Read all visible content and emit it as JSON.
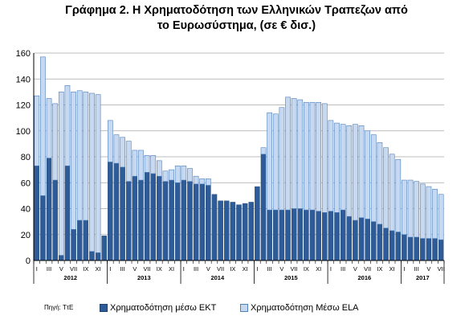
{
  "chart_data": {
    "type": "bar",
    "stacked": true,
    "title": [
      "Γράφημα 2. Η Χρηματοδότηση των Ελληνικών Τραπεζων από",
      "το Ευρωσύστημα, (σε € δισ.)"
    ],
    "ylim": [
      0,
      160
    ],
    "yticks": [
      0,
      20,
      40,
      60,
      80,
      100,
      120,
      140,
      160
    ],
    "grid": true,
    "legend_position": "bottom",
    "source": "Πηγή: ΤτΕ",
    "month_labels": [
      "I",
      "III",
      "V",
      "VII",
      "IX",
      "XI"
    ],
    "month_labels_last": "VII",
    "years": [
      "2012",
      "2013",
      "2014",
      "2015",
      "2016",
      "2017"
    ],
    "x": [
      "2012-01",
      "2012-02",
      "2012-03",
      "2012-04",
      "2012-05",
      "2012-06",
      "2012-07",
      "2012-08",
      "2012-09",
      "2012-10",
      "2012-11",
      "2012-12",
      "2013-01",
      "2013-02",
      "2013-03",
      "2013-04",
      "2013-05",
      "2013-06",
      "2013-07",
      "2013-08",
      "2013-09",
      "2013-10",
      "2013-11",
      "2013-12",
      "2014-01",
      "2014-02",
      "2014-03",
      "2014-04",
      "2014-05",
      "2014-06",
      "2014-07",
      "2014-08",
      "2014-09",
      "2014-10",
      "2014-11",
      "2014-12",
      "2015-01",
      "2015-02",
      "2015-03",
      "2015-04",
      "2015-05",
      "2015-06",
      "2015-07",
      "2015-08",
      "2015-09",
      "2015-10",
      "2015-11",
      "2015-12",
      "2016-01",
      "2016-02",
      "2016-03",
      "2016-04",
      "2016-05",
      "2016-06",
      "2016-07",
      "2016-08",
      "2016-09",
      "2016-10",
      "2016-11",
      "2016-12",
      "2017-01",
      "2017-02",
      "2017-03",
      "2017-04",
      "2017-05",
      "2017-06",
      "2017-07"
    ],
    "series": [
      {
        "name": "Χρηματοδότηση μέσω ΕΚΤ",
        "color": "#2e5c99",
        "values": [
          73,
          50,
          79,
          62,
          4,
          73,
          24,
          31,
          31,
          7,
          6,
          19,
          76,
          75,
          72,
          61,
          65,
          62,
          68,
          67,
          65,
          61,
          62,
          60,
          62,
          61,
          59,
          59,
          58,
          51,
          46,
          46,
          45,
          43,
          44,
          45,
          57,
          82,
          39,
          39,
          39,
          39,
          40,
          40,
          39,
          39,
          38,
          37,
          38,
          37,
          39,
          34,
          31,
          33,
          32,
          30,
          28,
          25,
          23,
          22,
          20,
          18,
          18,
          17,
          17,
          17,
          16
        ]
      },
      {
        "name": "Χρηματοδότηση Μέσω ELA",
        "color": "#c6d9f1",
        "values": [
          54,
          107,
          46,
          59,
          126,
          62,
          106,
          100,
          99,
          122,
          122,
          0,
          32,
          22,
          23,
          31,
          20,
          23,
          13,
          14,
          12,
          8,
          8,
          13,
          11,
          10,
          6,
          4,
          5,
          0,
          0,
          0,
          0,
          0,
          0,
          0,
          0,
          5,
          75,
          74,
          79,
          87,
          85,
          84,
          83,
          83,
          84,
          84,
          70,
          69,
          66,
          70,
          74,
          71,
          68,
          67,
          63,
          62,
          59,
          56,
          42,
          44,
          43,
          42,
          40,
          38,
          35
        ]
      }
    ]
  }
}
